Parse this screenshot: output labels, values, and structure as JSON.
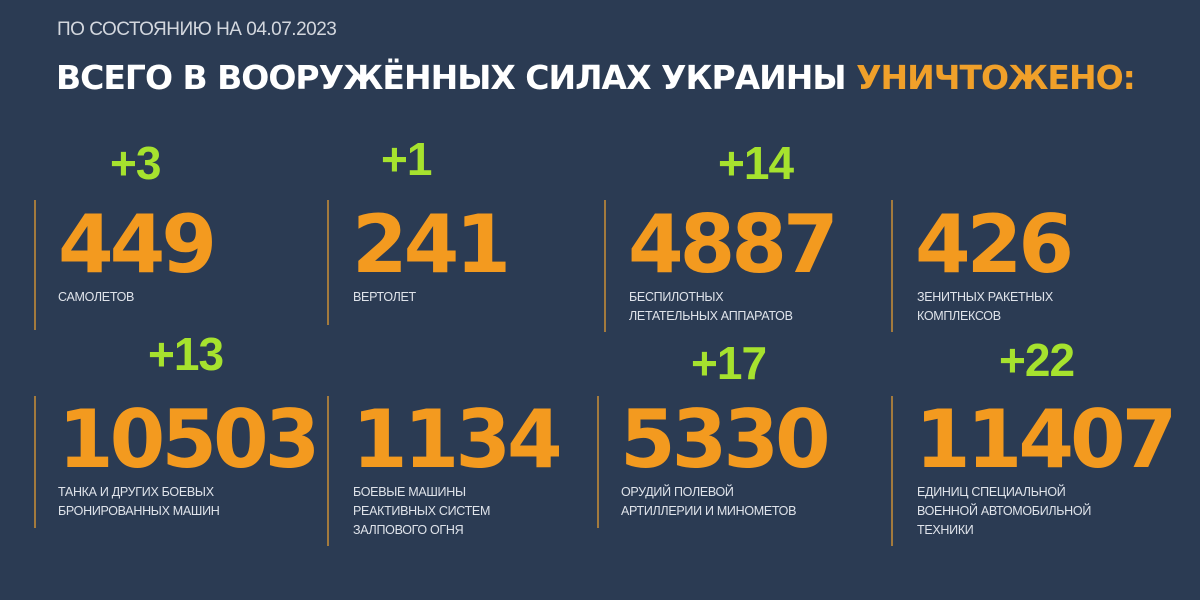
{
  "header": {
    "date_line": "ПО СОСТОЯНИЮ НА 04.07.2023",
    "title_main": "ВСЕГО В ВООРУЖЁННЫХ СИЛАХ УКРАИНЫ",
    "title_highlight": "УНИЧТОЖЕНО:"
  },
  "colors": {
    "background": "#2b3b53",
    "number": "#f39a1f",
    "delta": "#a6e22e",
    "highlight": "#f0a02a"
  },
  "stats": [
    {
      "delta": "+3",
      "value": "449",
      "label": "САМОЛЕТОВ"
    },
    {
      "delta": "+1",
      "value": "241",
      "label": "ВЕРТОЛЕТ"
    },
    {
      "delta": "+14",
      "value": "4887",
      "label": "БЕСПИЛОТНЫХ\nЛЕТАТЕЛЬНЫХ АППАРАТОВ"
    },
    {
      "delta": "",
      "value": "426",
      "label": "ЗЕНИТНЫХ РАКЕТНЫХ\nКОМПЛЕКСОВ"
    },
    {
      "delta": "+13",
      "value": "10503",
      "label": "ТАНКА И ДРУГИХ БОЕВЫХ\nБРОНИРОВАННЫХ МАШИН"
    },
    {
      "delta": "",
      "value": "1134",
      "label": "БОЕВЫЕ МАШИНЫ\nРЕАКТИВНЫХ СИСТЕМ\nЗАЛПОВОГО ОГНЯ"
    },
    {
      "delta": "+17",
      "value": "5330",
      "label": "ОРУДИЙ ПОЛЕВОЙ\nАРТИЛЛЕРИИ И МИНОМЕТОВ"
    },
    {
      "delta": "+22",
      "value": "11407",
      "label": "ЕДИНИЦ СПЕЦИАЛЬНОЙ\nВОЕННОЙ АВТОМОБИЛЬНОЙ\nТЕХНИКИ"
    }
  ]
}
